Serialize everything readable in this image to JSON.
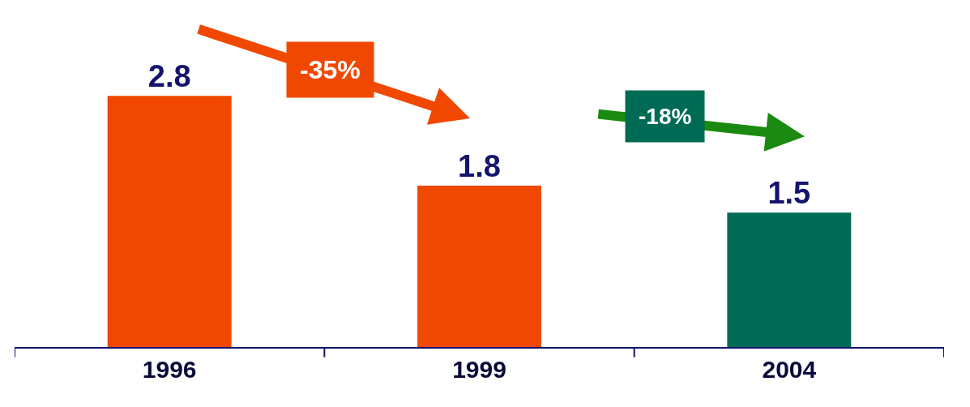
{
  "chart_data": {
    "type": "bar",
    "categories": [
      "1996",
      "1999",
      "2004"
    ],
    "values": [
      2.8,
      1.8,
      1.5
    ],
    "colors": [
      "#f04800",
      "#f04800",
      "#006b55"
    ],
    "data_labels": true,
    "annotations": [
      "-35%",
      "-18%"
    ]
  }
}
